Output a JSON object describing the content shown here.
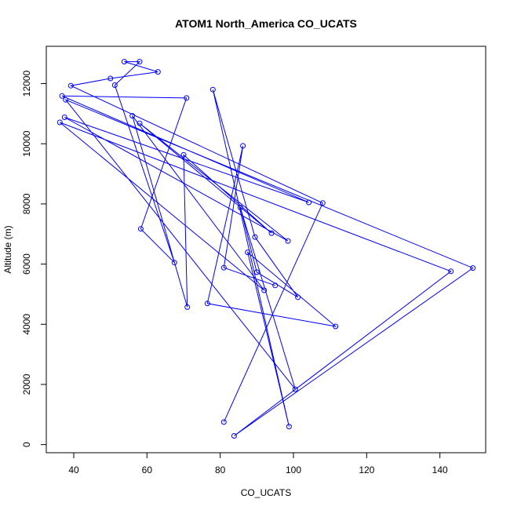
{
  "chart_data": {
    "type": "line",
    "title": "ATOM1 North_America CO_UCATS",
    "xlabel": "CO_UCATS",
    "ylabel": "Altitude (m)",
    "xlim": [
      32.5,
      152.5
    ],
    "ylim": [
      -270,
      13240
    ],
    "xticks": [
      40,
      60,
      80,
      100,
      120,
      140
    ],
    "yticks": [
      0,
      2000,
      4000,
      6000,
      8000,
      10000,
      12000
    ],
    "grid": false,
    "legend": "none",
    "colors": {
      "series": "#0000ff",
      "axes": "#000000"
    },
    "series": [
      {
        "x": [
          81.0,
          108.0,
          39.2,
          50.0,
          63.0,
          53.8,
          58.0,
          51.2,
          67.5,
          58.3,
          70.8,
          36.8,
          104.2,
          37.5,
          98.5,
          58.0,
          94.0,
          70.0,
          71.0,
          56.0,
          92.0,
          36.2,
          143.0,
          83.8,
          149.0,
          37.8,
          100.5,
          85.5,
          90.0,
          101.2,
          89.5,
          78.0,
          98.8,
          87.5,
          111.5,
          76.5,
          86.2,
          81.0,
          95.0
        ],
        "y": [
          750,
          8030,
          11930,
          12170,
          12390,
          12730,
          12730,
          11950,
          6050,
          7170,
          11520,
          11590,
          8050,
          10880,
          6770,
          10680,
          7030,
          9630,
          4570,
          10930,
          5130,
          10710,
          5760,
          290,
          5870,
          11460,
          1840,
          7880,
          5730,
          4900,
          6900,
          11800,
          600,
          6390,
          3930,
          4690,
          9930,
          5880,
          5290
        ]
      }
    ]
  }
}
